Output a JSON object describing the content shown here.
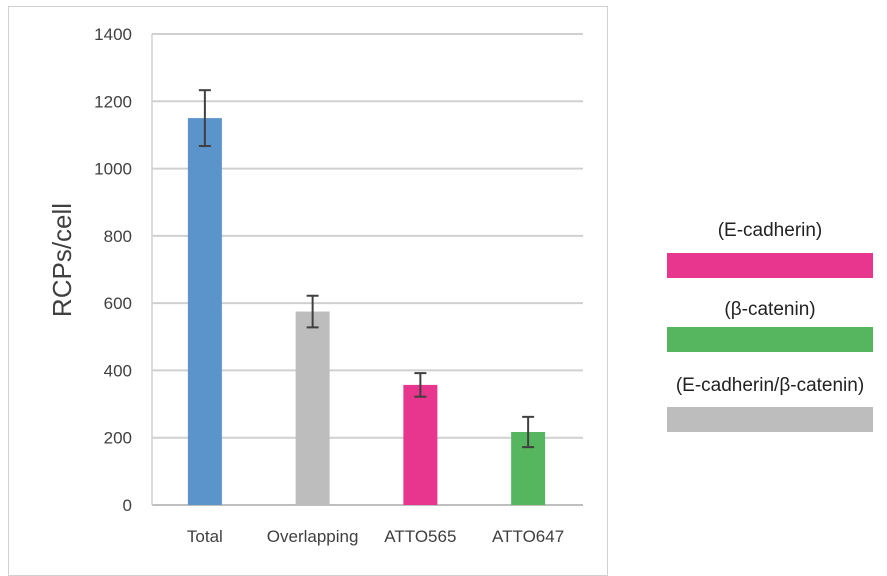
{
  "chart_data": {
    "type": "bar",
    "ylabel": "RCPs/cell",
    "xlabel": "",
    "ylim": [
      0,
      1400
    ],
    "yticks": [
      0,
      200,
      400,
      600,
      800,
      1000,
      1200,
      1400
    ],
    "grid": true,
    "categories": [
      "Total",
      "Overlapping",
      "ATTO565",
      "ATTO647"
    ],
    "values": [
      1150,
      575,
      357,
      217
    ],
    "errors": [
      83,
      47,
      35,
      45
    ],
    "colors": [
      "#5b93cb",
      "#bdbdbd",
      "#e8358d",
      "#55b65f"
    ]
  },
  "legend": [
    {
      "label": "(E-cadherin)",
      "color": "#e8358d"
    },
    {
      "label": "(β-catenin)",
      "color": "#55b65f"
    },
    {
      "label": "(E-cadherin/β-catenin)",
      "color": "#bdbdbd"
    }
  ]
}
